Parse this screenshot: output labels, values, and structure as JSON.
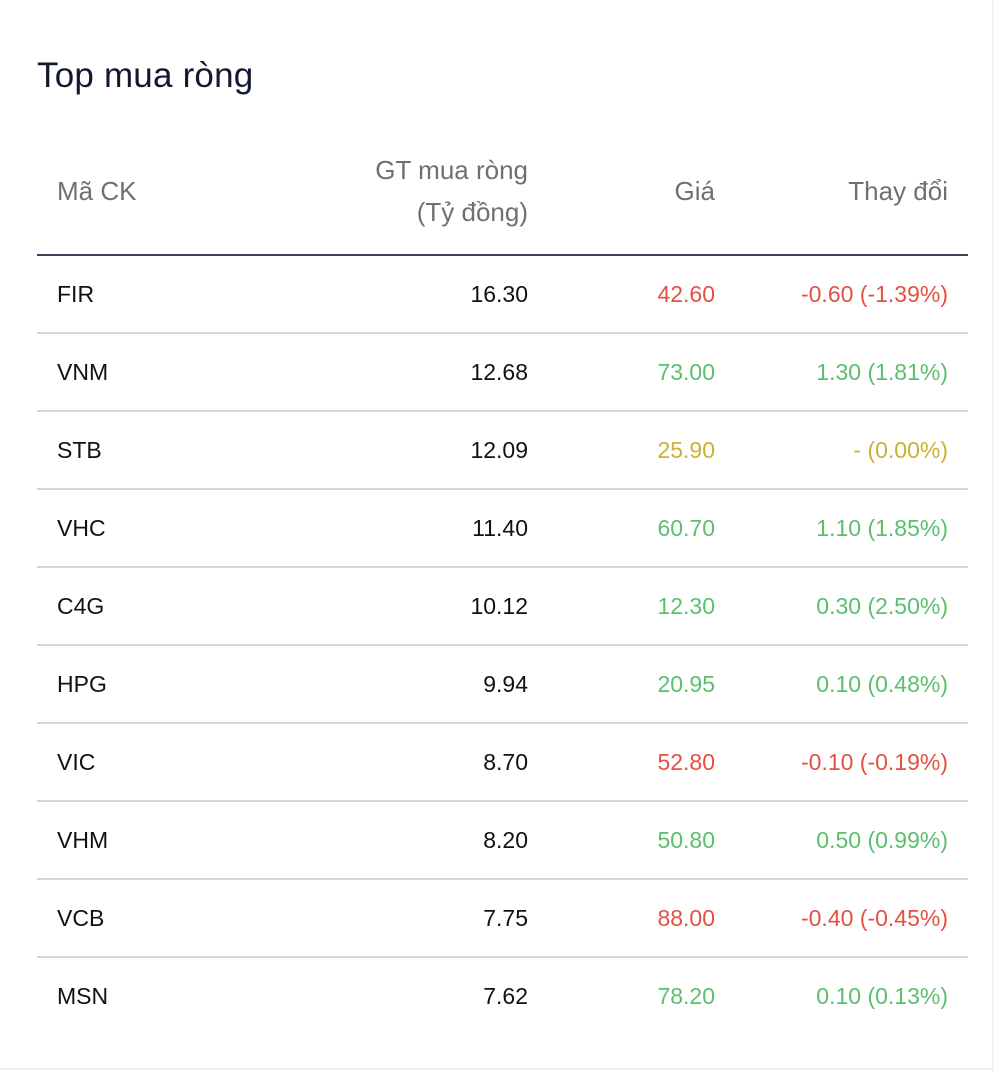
{
  "title": "Top mua ròng",
  "columns": {
    "code": "Mã CK",
    "value_line1": "GT mua ròng",
    "value_line2": "(Tỷ đồng)",
    "price": "Giá",
    "change": "Thay đổi"
  },
  "colors": {
    "up": "#5cbf6e",
    "down": "#e45043",
    "ref": "#c9b234"
  },
  "rows": [
    {
      "code": "FIR",
      "value": "16.30",
      "price": "42.60",
      "change": "-0.60 (-1.39%)",
      "trend": "down"
    },
    {
      "code": "VNM",
      "value": "12.68",
      "price": "73.00",
      "change": "1.30 (1.81%)",
      "trend": "up"
    },
    {
      "code": "STB",
      "value": "12.09",
      "price": "25.90",
      "change": "- (0.00%)",
      "trend": "ref"
    },
    {
      "code": "VHC",
      "value": "11.40",
      "price": "60.70",
      "change": "1.10 (1.85%)",
      "trend": "up"
    },
    {
      "code": "C4G",
      "value": "10.12",
      "price": "12.30",
      "change": "0.30 (2.50%)",
      "trend": "up"
    },
    {
      "code": "HPG",
      "value": "9.94",
      "price": "20.95",
      "change": "0.10 (0.48%)",
      "trend": "up"
    },
    {
      "code": "VIC",
      "value": "8.70",
      "price": "52.80",
      "change": "-0.10 (-0.19%)",
      "trend": "down"
    },
    {
      "code": "VHM",
      "value": "8.20",
      "price": "50.80",
      "change": "0.50 (0.99%)",
      "trend": "up"
    },
    {
      "code": "VCB",
      "value": "7.75",
      "price": "88.00",
      "change": "-0.40 (-0.45%)",
      "trend": "down"
    },
    {
      "code": "MSN",
      "value": "7.62",
      "price": "78.20",
      "change": "0.10 (0.13%)",
      "trend": "up"
    }
  ]
}
